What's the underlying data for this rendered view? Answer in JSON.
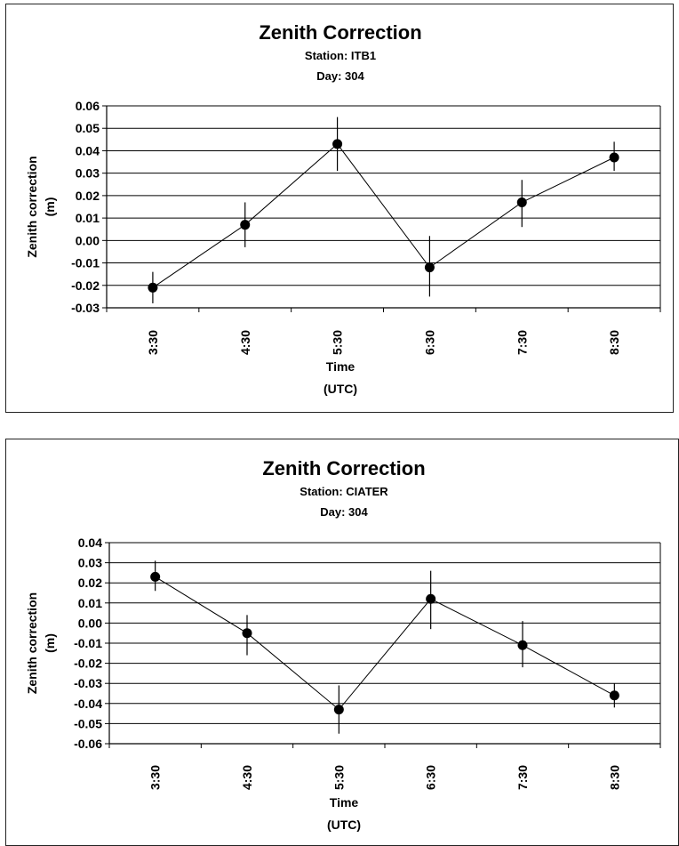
{
  "chart_data": [
    {
      "type": "line",
      "title": "Zenith Correction",
      "subtitles": [
        "Station: ITB1",
        "Day: 304"
      ],
      "xlabel_lines": [
        "Time",
        "(UTC)"
      ],
      "ylabel_lines": [
        "Zenith correction",
        "(m)"
      ],
      "categories": [
        "3:30",
        "4:30",
        "5:30",
        "6:30",
        "7:30",
        "8:30"
      ],
      "values": [
        -0.021,
        0.007,
        0.043,
        -0.012,
        0.017,
        0.037
      ],
      "error_low": [
        -0.028,
        -0.003,
        0.031,
        -0.025,
        0.006,
        0.031
      ],
      "error_high": [
        -0.014,
        0.017,
        0.055,
        0.002,
        0.027,
        0.044
      ],
      "ylim": [
        -0.03,
        0.06
      ],
      "yticks": [
        "-0.03",
        "-0.02",
        "-0.01",
        "0.00",
        "0.01",
        "0.02",
        "0.03",
        "0.04",
        "0.05",
        "0.06"
      ],
      "grid": true,
      "legend": "none"
    },
    {
      "type": "line",
      "title": "Zenith Correction",
      "subtitles": [
        "Station: CIATER",
        "Day: 304"
      ],
      "xlabel_lines": [
        "Time",
        "(UTC)"
      ],
      "ylabel_lines": [
        "Zenith correction",
        "(m)"
      ],
      "categories": [
        "3:30",
        "4:30",
        "5:30",
        "6:30",
        "7:30",
        "8:30"
      ],
      "values": [
        0.023,
        -0.005,
        -0.043,
        0.012,
        -0.011,
        -0.036
      ],
      "error_low": [
        0.016,
        -0.016,
        -0.055,
        -0.003,
        -0.022,
        -0.042
      ],
      "error_high": [
        0.031,
        0.004,
        -0.031,
        0.026,
        0.001,
        -0.03
      ],
      "ylim": [
        -0.06,
        0.04
      ],
      "yticks": [
        "-0.06",
        "-0.05",
        "-0.04",
        "-0.03",
        "-0.02",
        "-0.01",
        "0.00",
        "0.01",
        "0.02",
        "0.03",
        "0.04"
      ],
      "grid": true,
      "legend": "none"
    }
  ]
}
